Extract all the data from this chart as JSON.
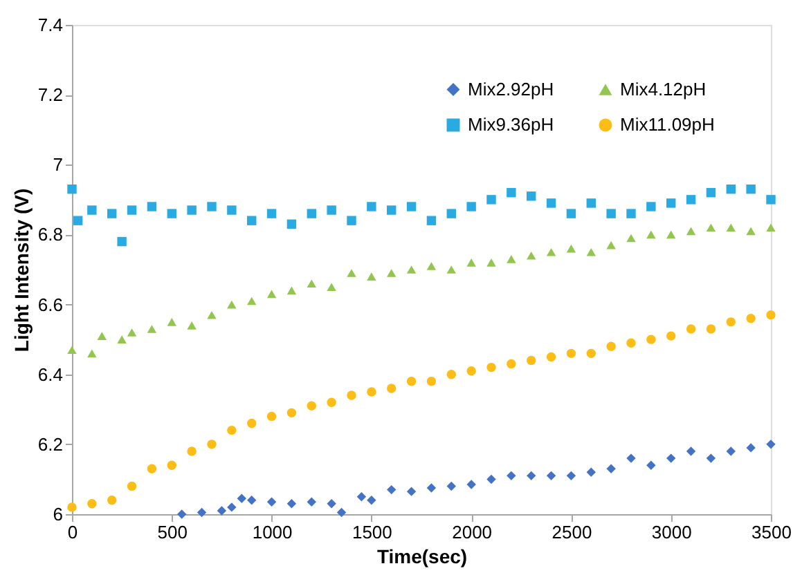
{
  "chart_data": {
    "type": "scatter",
    "xlabel": "Time(sec)",
    "ylabel": "Light Intensity (V)",
    "xlim": [
      0,
      3500
    ],
    "xticks": [
      0,
      500,
      1000,
      1500,
      2000,
      2500,
      3000,
      3500
    ],
    "ylim": [
      6,
      7.4
    ],
    "yticks": [
      6,
      6.2,
      6.4,
      6.6,
      6.8,
      7,
      7.2,
      7.4
    ],
    "grid": false,
    "legend": "top right",
    "series": [
      {
        "name": "Mix2.92pH",
        "color": "#4472c4",
        "marker": "diamond",
        "x": [
          550,
          650,
          750,
          800,
          850,
          900,
          1000,
          1100,
          1200,
          1300,
          1350,
          1450,
          1500,
          1600,
          1700,
          1800,
          1900,
          2000,
          2100,
          2200,
          2300,
          2400,
          2500,
          2600,
          2700,
          2800,
          2900,
          3000,
          3100,
          3200,
          3300,
          3400,
          3500
        ],
        "values": [
          6.0,
          6.005,
          6.01,
          6.02,
          6.045,
          6.04,
          6.035,
          6.03,
          6.035,
          6.03,
          6.005,
          6.05,
          6.04,
          6.07,
          6.065,
          6.075,
          6.08,
          6.085,
          6.1,
          6.11,
          6.11,
          6.11,
          6.11,
          6.12,
          6.13,
          6.16,
          6.14,
          6.16,
          6.18,
          6.16,
          6.18,
          6.19,
          6.2
        ]
      },
      {
        "name": "Mix4.12pH",
        "color": "#92c64e",
        "marker": "triangle",
        "x": [
          0,
          100,
          150,
          250,
          300,
          400,
          500,
          600,
          700,
          800,
          900,
          1000,
          1100,
          1200,
          1300,
          1400,
          1500,
          1600,
          1700,
          1800,
          1900,
          2000,
          2100,
          2200,
          2300,
          2400,
          2500,
          2600,
          2700,
          2800,
          2900,
          3000,
          3100,
          3200,
          3300,
          3400,
          3500
        ],
        "values": [
          6.47,
          6.46,
          6.51,
          6.5,
          6.52,
          6.53,
          6.55,
          6.54,
          6.57,
          6.6,
          6.61,
          6.63,
          6.64,
          6.66,
          6.65,
          6.69,
          6.68,
          6.69,
          6.7,
          6.71,
          6.7,
          6.72,
          6.72,
          6.73,
          6.74,
          6.75,
          6.76,
          6.75,
          6.77,
          6.79,
          6.8,
          6.8,
          6.81,
          6.82,
          6.82,
          6.81,
          6.82
        ]
      },
      {
        "name": "Mix9.36pH",
        "color": "#29abe2",
        "marker": "square",
        "x": [
          0,
          30,
          100,
          200,
          250,
          300,
          400,
          500,
          600,
          700,
          800,
          900,
          1000,
          1100,
          1200,
          1300,
          1400,
          1500,
          1600,
          1700,
          1800,
          1900,
          2000,
          2100,
          2200,
          2300,
          2400,
          2500,
          2600,
          2700,
          2800,
          2900,
          3000,
          3100,
          3200,
          3300,
          3400,
          3500
        ],
        "values": [
          6.93,
          6.84,
          6.87,
          6.86,
          6.78,
          6.87,
          6.88,
          6.86,
          6.87,
          6.88,
          6.87,
          6.84,
          6.86,
          6.83,
          6.86,
          6.87,
          6.84,
          6.88,
          6.87,
          6.88,
          6.84,
          6.86,
          6.88,
          6.9,
          6.92,
          6.91,
          6.89,
          6.86,
          6.89,
          6.86,
          6.86,
          6.88,
          6.89,
          6.9,
          6.92,
          6.93,
          6.93,
          6.9
        ]
      },
      {
        "name": "Mix11.09pH",
        "color": "#fbbd16",
        "marker": "circle",
        "x": [
          0,
          100,
          200,
          300,
          400,
          500,
          600,
          700,
          800,
          900,
          1000,
          1100,
          1200,
          1300,
          1400,
          1500,
          1600,
          1700,
          1800,
          1900,
          2000,
          2100,
          2200,
          2300,
          2400,
          2500,
          2600,
          2700,
          2800,
          2900,
          3000,
          3100,
          3200,
          3300,
          3400,
          3500
        ],
        "values": [
          6.02,
          6.03,
          6.04,
          6.08,
          6.13,
          6.14,
          6.18,
          6.2,
          6.24,
          6.26,
          6.28,
          6.29,
          6.31,
          6.32,
          6.34,
          6.35,
          6.36,
          6.38,
          6.38,
          6.4,
          6.41,
          6.42,
          6.43,
          6.44,
          6.45,
          6.46,
          6.46,
          6.48,
          6.49,
          6.5,
          6.51,
          6.53,
          6.53,
          6.55,
          6.56,
          6.57
        ]
      }
    ]
  }
}
